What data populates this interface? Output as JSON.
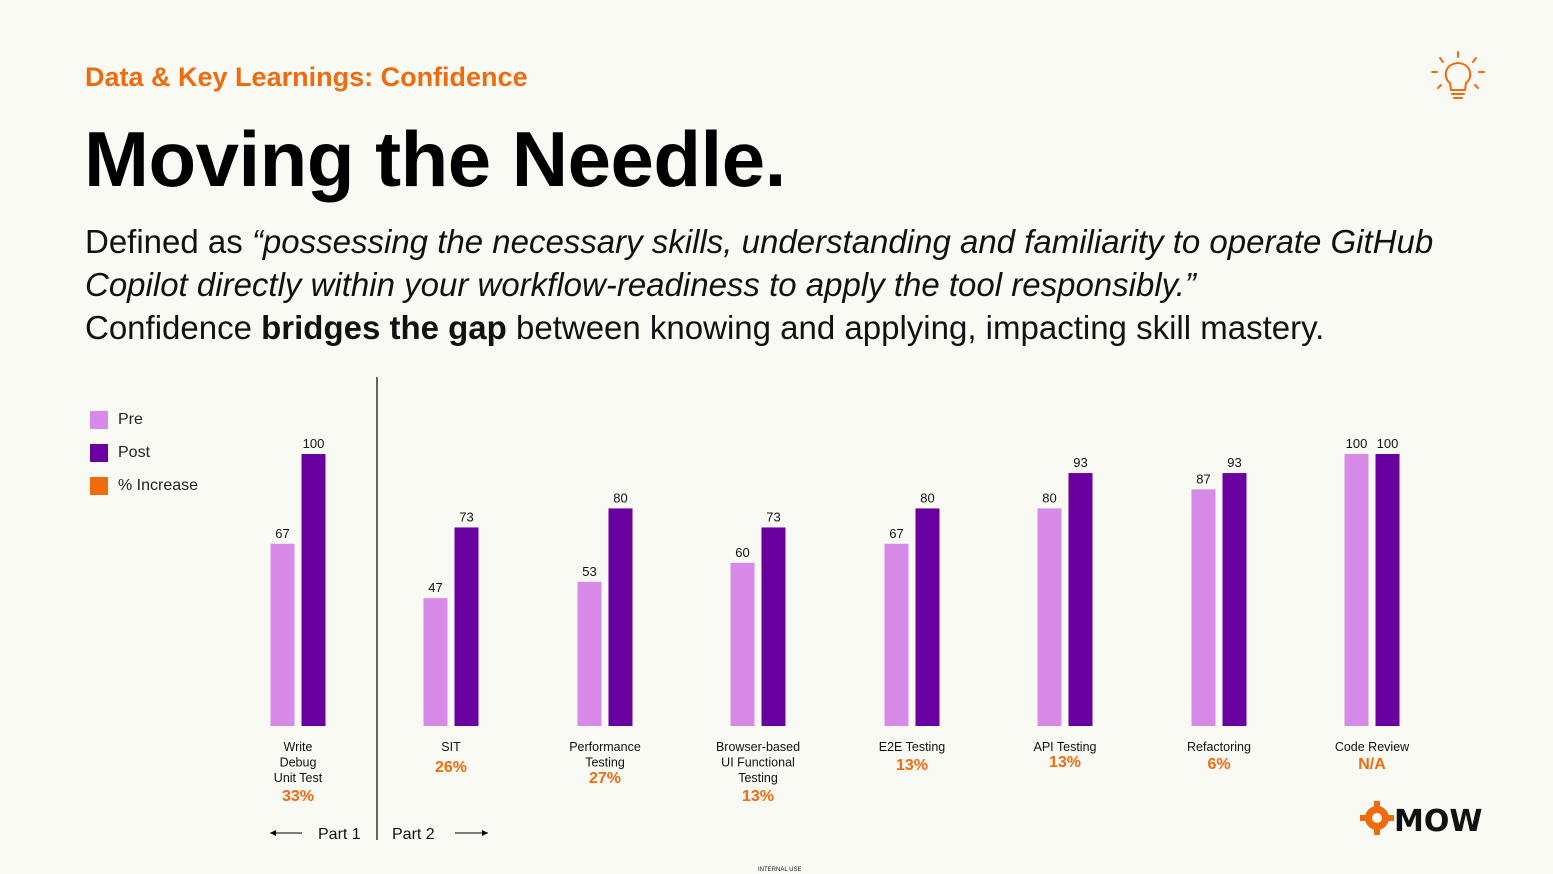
{
  "header": {
    "subtitle": "Data & Key Learnings: Confidence",
    "title": "Moving the Needle.",
    "body_line1_prefix": "Defined as ",
    "body_quote": "“possessing the necessary skills, understanding and familiarity to operate GitHub Copilot directly within your workflow-readiness to apply the tool responsibly.”",
    "body_line3_a": "Confidence ",
    "body_line3_bold": "bridges the gap",
    "body_line3_b": " between knowing and applying, impacting skill mastery."
  },
  "footer": {
    "note": "INTERNAL USE",
    "logo_text": "MOW"
  },
  "colors": {
    "pre": "#d88ae8",
    "post": "#6a00a0",
    "increase": "#f06a0e",
    "accent": "#f06a0e"
  },
  "chart_data": {
    "type": "bar",
    "categories": [
      [
        "Write",
        "Debug",
        "Unit Test"
      ],
      [
        "SIT"
      ],
      [
        "Performance",
        "Testing"
      ],
      [
        "Browser-based",
        "UI Functional",
        "Testing"
      ],
      [
        "E2E Testing"
      ],
      [
        "API Testing"
      ],
      [
        "Refactoring"
      ],
      [
        "Code Review"
      ]
    ],
    "series": [
      {
        "name": "Pre",
        "values": [
          67,
          47,
          53,
          60,
          67,
          80,
          87,
          100
        ]
      },
      {
        "name": "Post",
        "values": [
          100,
          73,
          80,
          73,
          80,
          93,
          93,
          100
        ]
      }
    ],
    "increase_label": "% Increase",
    "increase": [
      "33%",
      "26%",
      "27%",
      "13%",
      "13%",
      "13%",
      "6%",
      "N/A"
    ],
    "ylim": [
      0,
      100
    ],
    "parts": [
      "Part 1",
      "Part 2"
    ]
  }
}
